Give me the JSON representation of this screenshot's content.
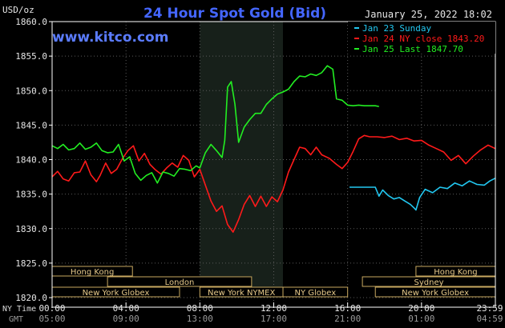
{
  "chart_data": {
    "type": "line",
    "title": "24 Hour Spot Gold (Bid)",
    "units_label": "USD/oz",
    "watermark": "www.kitco.com",
    "timestamp": "January 25, 2022 18:02",
    "ylim": [
      1820,
      1860
    ],
    "y_ticks": [
      "1860.0",
      "1855.0",
      "1850.0",
      "1845.0",
      "1840.0",
      "1835.0",
      "1830.0",
      "1825.0",
      "1820.0"
    ],
    "y_tick_values": [
      1860,
      1855,
      1850,
      1845,
      1840,
      1835,
      1830,
      1825,
      1820
    ],
    "x_row_labels": {
      "ny": "NY Time",
      "gmt": "GMT"
    },
    "x_ticks_ny": [
      "00:00",
      "04:00",
      "08:00",
      "12:00",
      "16:00",
      "20:00",
      "23:59"
    ],
    "x_ticks_gmt": [
      "05:00",
      "09:00",
      "13:00",
      "17:00",
      "21:00",
      "01:00",
      "04:59"
    ],
    "x_tick_hours": [
      0,
      4,
      8,
      12,
      16,
      20,
      24
    ],
    "shaded_region_hours": [
      8,
      12.5
    ],
    "legend": [
      {
        "label": "Jan 23 Sunday",
        "color": "#22c7f0"
      },
      {
        "label": "Jan 24 NY close 1843.20",
        "color": "#ff1a1a"
      },
      {
        "label": "Jan 25 Last 1847.70",
        "color": "#22ee22"
      }
    ],
    "markets": [
      {
        "label": "Hong Kong",
        "row": 0,
        "start_hour": 0,
        "end_hour": 4.35
      },
      {
        "label": "Hong Kong",
        "row": 0,
        "start_hour": 19.7,
        "end_hour": 24
      },
      {
        "label": "London",
        "row": 1,
        "start_hour": 3,
        "end_hour": 10.8
      },
      {
        "label": "Sydney",
        "row": 1,
        "start_hour": 16.8,
        "end_hour": 24
      },
      {
        "label": "New York Globex",
        "row": 2,
        "start_hour": 0,
        "end_hour": 6.9
      },
      {
        "label": "New York NYMEX",
        "row": 2,
        "start_hour": 8,
        "end_hour": 12.5
      },
      {
        "label": "NY Globex",
        "row": 2,
        "start_hour": 12.5,
        "end_hour": 16
      },
      {
        "label": "New York Globex",
        "row": 2,
        "start_hour": 17.5,
        "end_hour": 24
      }
    ],
    "series": [
      {
        "name": "Jan 23 Sunday",
        "color": "#22c7f0",
        "x": [
          16.1,
          16.8,
          17.5,
          17.7,
          17.9,
          18.2,
          18.5,
          18.8,
          19.1,
          19.4,
          19.6,
          19.7,
          19.9,
          20.2,
          20.6,
          21.0,
          21.4,
          21.8,
          22.2,
          22.6,
          23.0,
          23.4,
          23.7,
          23.99
        ],
        "y": [
          1836.0,
          1836.0,
          1836.0,
          1834.7,
          1835.6,
          1834.8,
          1834.3,
          1834.5,
          1834.0,
          1833.5,
          1833.0,
          1832.7,
          1834.5,
          1835.7,
          1835.2,
          1836.0,
          1835.8,
          1836.6,
          1836.2,
          1836.9,
          1836.4,
          1836.3,
          1836.9,
          1837.3
        ]
      },
      {
        "name": "Jan 24 NY close 1843.20",
        "color": "#ff1a1a",
        "x": [
          0.0,
          0.3,
          0.6,
          0.9,
          1.2,
          1.5,
          1.8,
          2.1,
          2.4,
          2.6,
          2.9,
          3.2,
          3.5,
          3.8,
          4.1,
          4.4,
          4.7,
          5.0,
          5.3,
          5.6,
          5.9,
          6.2,
          6.5,
          6.8,
          7.1,
          7.4,
          7.7,
          8.0,
          8.3,
          8.6,
          8.9,
          9.2,
          9.5,
          9.8,
          10.1,
          10.4,
          10.7,
          11.0,
          11.3,
          11.6,
          11.9,
          12.2,
          12.5,
          12.8,
          13.1,
          13.4,
          13.7,
          14.0,
          14.3,
          14.6,
          15.0,
          15.4,
          15.7,
          16.0,
          16.3,
          16.6,
          16.9,
          17.2,
          17.6,
          18.0,
          18.4,
          18.8,
          19.2,
          19.6,
          20.0,
          20.4,
          20.8,
          21.2,
          21.6,
          22.0,
          22.4,
          22.8,
          23.2,
          23.6,
          23.99
        ],
        "y": [
          1837.5,
          1838.3,
          1837.2,
          1836.9,
          1838.1,
          1838.2,
          1839.8,
          1837.8,
          1836.8,
          1837.7,
          1839.5,
          1838.0,
          1838.6,
          1840.1,
          1841.3,
          1842.0,
          1839.8,
          1840.9,
          1839.3,
          1838.5,
          1837.9,
          1838.8,
          1839.5,
          1838.9,
          1840.6,
          1839.9,
          1837.5,
          1838.6,
          1836.3,
          1834.0,
          1832.5,
          1833.3,
          1830.6,
          1829.5,
          1831.3,
          1833.5,
          1834.8,
          1833.2,
          1834.7,
          1833.2,
          1834.6,
          1833.9,
          1835.6,
          1838.2,
          1840.0,
          1841.8,
          1841.6,
          1840.7,
          1841.8,
          1840.7,
          1840.2,
          1839.3,
          1838.7,
          1839.6,
          1841.2,
          1843.0,
          1843.5,
          1843.3,
          1843.3,
          1843.2,
          1843.4,
          1842.9,
          1843.1,
          1842.7,
          1842.8,
          1842.1,
          1841.6,
          1841.1,
          1839.9,
          1840.6,
          1839.4,
          1840.5,
          1841.4,
          1842.1,
          1841.6
        ]
      },
      {
        "name": "Jan 25 Last 1847.70",
        "color": "#22ee22",
        "x": [
          0.0,
          0.3,
          0.6,
          0.9,
          1.2,
          1.5,
          1.8,
          2.1,
          2.4,
          2.7,
          3.0,
          3.3,
          3.6,
          3.9,
          4.2,
          4.5,
          4.8,
          5.1,
          5.4,
          5.7,
          6.0,
          6.3,
          6.6,
          6.9,
          7.2,
          7.5,
          7.8,
          8.0,
          8.3,
          8.6,
          8.9,
          9.2,
          9.35,
          9.5,
          9.7,
          9.9,
          10.1,
          10.4,
          10.7,
          11.0,
          11.3,
          11.6,
          11.9,
          12.2,
          12.5,
          12.8,
          13.1,
          13.4,
          13.7,
          14.0,
          14.3,
          14.6,
          14.9,
          15.2,
          15.4,
          15.7,
          16.0,
          16.3,
          16.6,
          16.9,
          17.2,
          17.5,
          17.7
        ],
        "y": [
          1842.0,
          1841.6,
          1842.2,
          1841.4,
          1841.6,
          1842.4,
          1841.5,
          1841.8,
          1842.4,
          1841.3,
          1841.0,
          1841.1,
          1842.2,
          1839.8,
          1840.4,
          1838.0,
          1837.0,
          1837.7,
          1838.1,
          1836.6,
          1838.2,
          1838.0,
          1837.6,
          1838.7,
          1838.6,
          1838.4,
          1839.1,
          1838.8,
          1841.0,
          1842.2,
          1841.3,
          1840.3,
          1842.8,
          1850.5,
          1851.3,
          1848.0,
          1842.5,
          1844.7,
          1845.8,
          1846.7,
          1846.7,
          1848.0,
          1848.8,
          1849.5,
          1849.8,
          1850.2,
          1851.3,
          1852.1,
          1852.0,
          1852.4,
          1852.2,
          1852.6,
          1853.6,
          1853.1,
          1848.8,
          1848.6,
          1847.9,
          1847.8,
          1847.9,
          1847.8,
          1847.8,
          1847.8,
          1847.7
        ]
      }
    ]
  }
}
